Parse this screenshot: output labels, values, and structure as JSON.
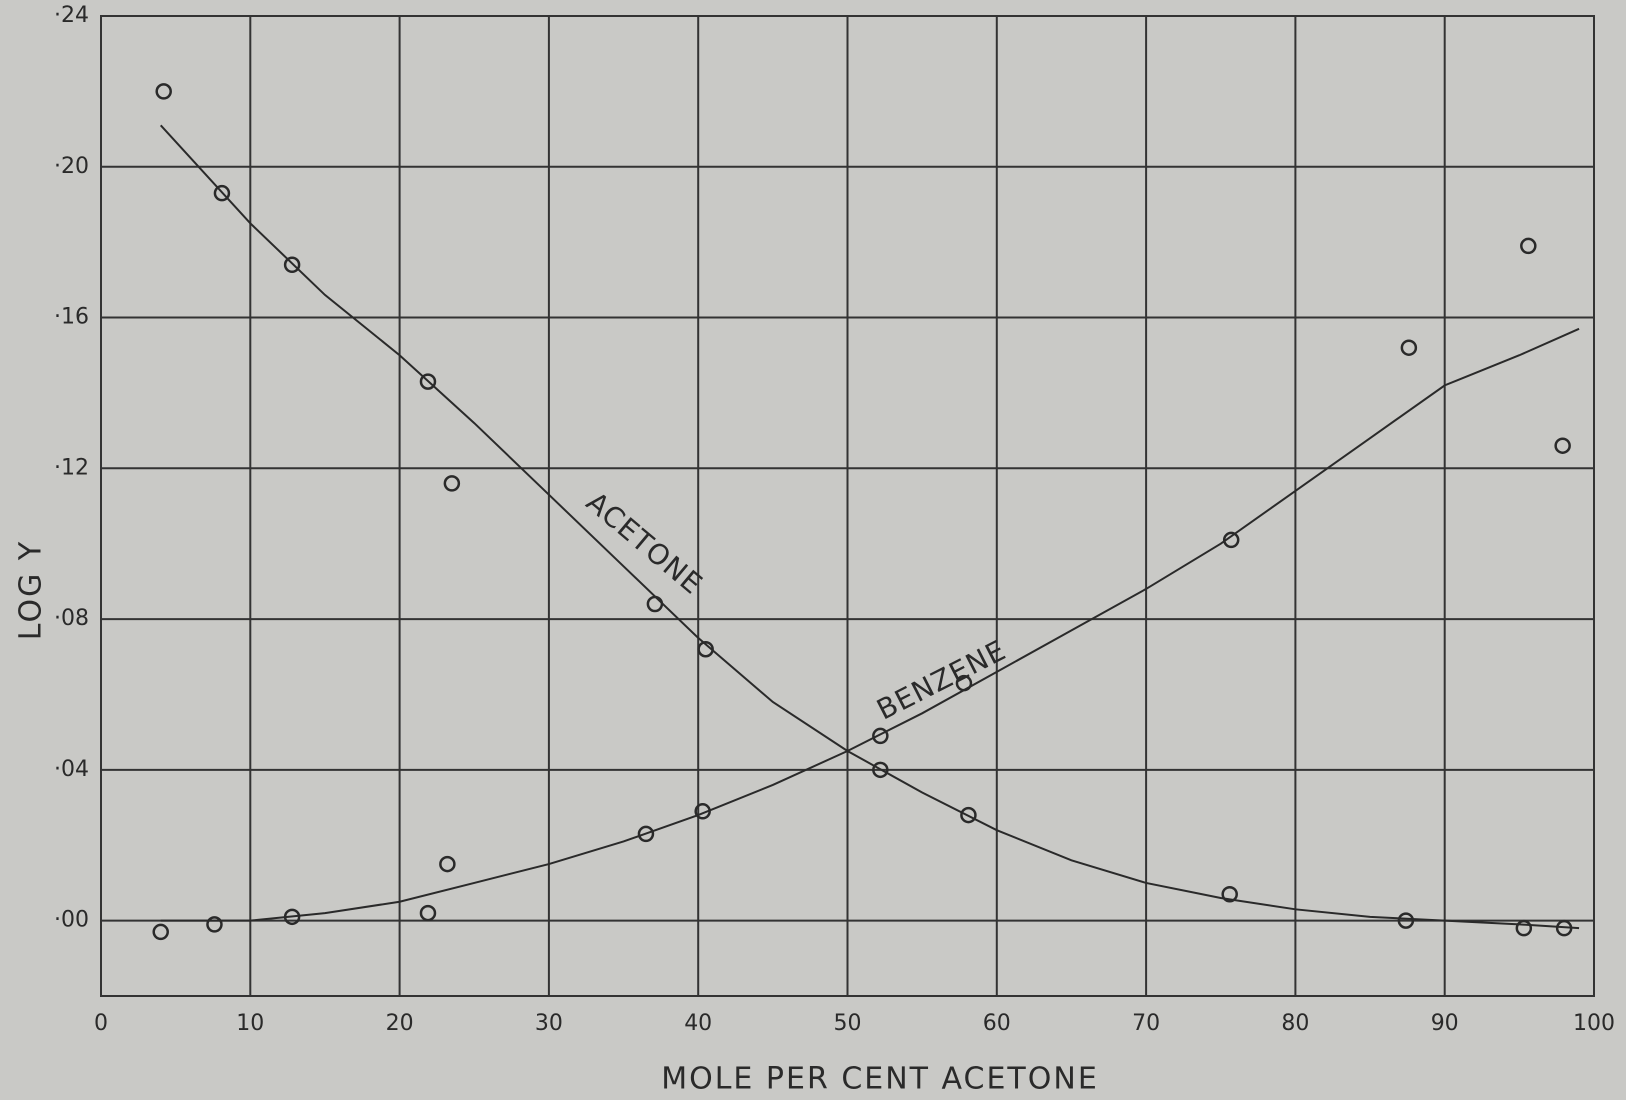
{
  "chart_data": {
    "type": "scatter",
    "x_label": "MOLE PER CENT ACETONE",
    "y_label": "LOG Y",
    "xlim": [
      0,
      100
    ],
    "ylim": [
      -0.02,
      0.24
    ],
    "xticks": [
      0,
      10,
      20,
      30,
      40,
      50,
      60,
      70,
      80,
      90,
      100
    ],
    "yticks": [
      {
        "value": 0.0,
        "label": "·00"
      },
      {
        "value": 0.04,
        "label": "·04"
      },
      {
        "value": 0.08,
        "label": "·08"
      },
      {
        "value": 0.12,
        "label": "·12"
      },
      {
        "value": 0.16,
        "label": "·16"
      },
      {
        "value": 0.2,
        "label": "·20"
      },
      {
        "value": 0.24,
        "label": "·24"
      }
    ],
    "grid": true,
    "series": [
      {
        "name": "ACETONE",
        "color": "#2a2a2a",
        "x": [
          4.2,
          8.1,
          12.8,
          21.9,
          23.5,
          37.1,
          40.5,
          52.2,
          58.1,
          75.6,
          87.4,
          95.3,
          98.0
        ],
        "values": [
          0.22,
          0.193,
          0.174,
          0.143,
          0.116,
          0.084,
          0.072,
          0.04,
          0.028,
          0.007,
          0.0,
          -0.002,
          -0.002
        ],
        "curve_x": [
          4,
          10,
          15,
          20,
          25,
          30,
          35,
          40,
          45,
          50,
          55,
          60,
          65,
          70,
          75,
          80,
          85,
          90,
          95,
          99
        ],
        "curve_values": [
          0.211,
          0.185,
          0.166,
          0.15,
          0.132,
          0.113,
          0.094,
          0.075,
          0.058,
          0.045,
          0.034,
          0.024,
          0.016,
          0.01,
          0.006,
          0.003,
          0.001,
          0.0,
          -0.001,
          -0.002
        ]
      },
      {
        "name": "BENZENE",
        "color": "#2a2a2a",
        "x": [
          4.0,
          7.6,
          12.8,
          21.9,
          23.2,
          36.5,
          40.3,
          52.2,
          57.8,
          75.7,
          87.6,
          95.6,
          97.9
        ],
        "values": [
          -0.003,
          -0.001,
          0.001,
          0.002,
          0.015,
          0.023,
          0.029,
          0.049,
          0.063,
          0.101,
          0.152,
          0.179,
          0.126
        ],
        "curve_x": [
          4,
          10,
          15,
          20,
          25,
          30,
          35,
          40,
          45,
          50,
          55,
          60,
          65,
          70,
          75,
          80,
          85,
          90,
          95,
          99
        ],
        "curve_values": [
          0.0,
          0.0,
          0.002,
          0.005,
          0.01,
          0.015,
          0.021,
          0.028,
          0.036,
          0.045,
          0.055,
          0.066,
          0.077,
          0.088,
          0.1,
          0.114,
          0.128,
          0.142,
          0.15,
          0.157
        ]
      }
    ]
  }
}
